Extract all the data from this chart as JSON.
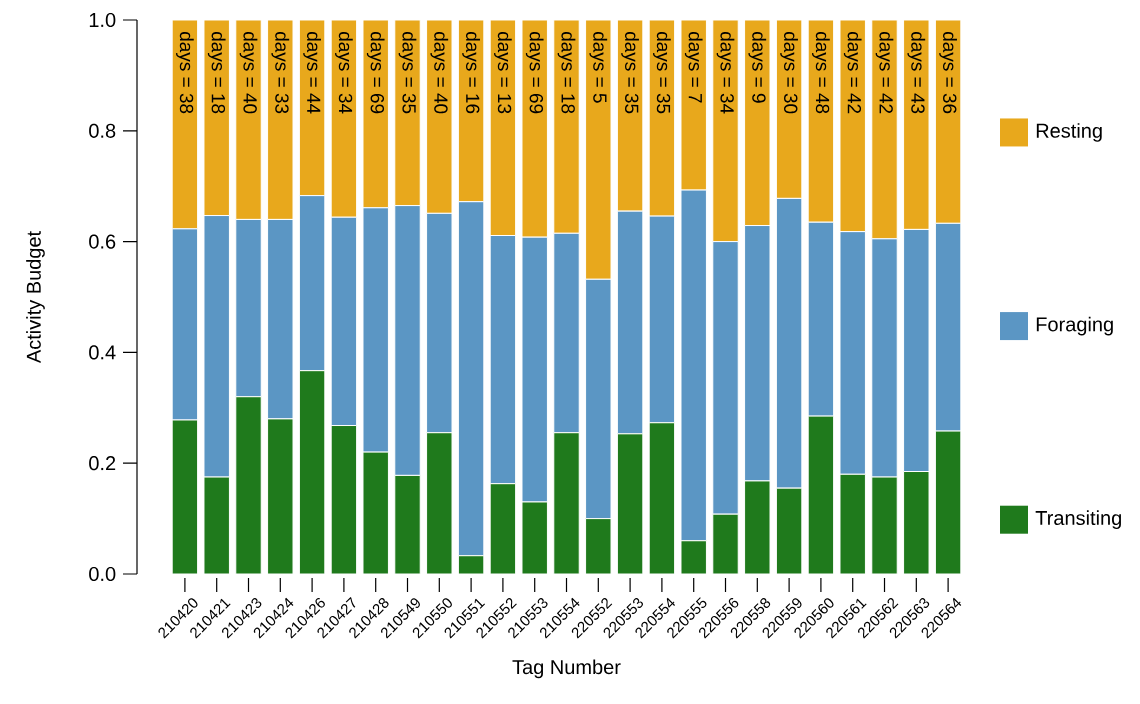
{
  "chart_data": {
    "type": "bar",
    "stacked": true,
    "xlabel": "Tag Number",
    "ylabel": "Activity Budget",
    "categories": [
      "210420",
      "210421",
      "210423",
      "210424",
      "210426",
      "210427",
      "210428",
      "210549",
      "210550",
      "210551",
      "210552",
      "210553",
      "210554",
      "220552",
      "220553",
      "220554",
      "220555",
      "220556",
      "220558",
      "220559",
      "220560",
      "220561",
      "220562",
      "220563",
      "220564"
    ],
    "series": [
      {
        "name": "Transiting",
        "color": "#1f7a1c",
        "values": [
          0.278,
          0.175,
          0.32,
          0.28,
          0.367,
          0.268,
          0.22,
          0.178,
          0.255,
          0.033,
          0.163,
          0.13,
          0.255,
          0.1,
          0.253,
          0.273,
          0.06,
          0.108,
          0.168,
          0.155,
          0.285,
          0.18,
          0.175,
          0.185,
          0.258
        ]
      },
      {
        "name": "Foraging",
        "color": "#5b96c4",
        "values": [
          0.345,
          0.472,
          0.32,
          0.36,
          0.316,
          0.376,
          0.441,
          0.487,
          0.396,
          0.639,
          0.448,
          0.478,
          0.36,
          0.432,
          0.402,
          0.373,
          0.633,
          0.492,
          0.461,
          0.523,
          0.35,
          0.438,
          0.43,
          0.437,
          0.375
        ]
      },
      {
        "name": "Resting",
        "color": "#e8a81c",
        "values": [
          0.377,
          0.353,
          0.36,
          0.36,
          0.317,
          0.356,
          0.339,
          0.335,
          0.349,
          0.328,
          0.389,
          0.392,
          0.385,
          0.468,
          0.345,
          0.354,
          0.307,
          0.4,
          0.371,
          0.322,
          0.365,
          0.382,
          0.395,
          0.378,
          0.367
        ]
      }
    ],
    "ylim": [
      0,
      1
    ],
    "yticks": [
      {
        "value": 0,
        "label": "0.0"
      },
      0.2,
      0.4,
      0.6,
      0.8,
      {
        "value": 1,
        "label": "1.0"
      }
    ],
    "legend": "right",
    "annotations": [
      "days = 38",
      "days = 18",
      "days = 40",
      "days = 33",
      "days = 44",
      "days = 34",
      "days = 69",
      "days = 35",
      "days = 40",
      "days = 16",
      "days = 13",
      "days = 69",
      "days = 18",
      "days = 5",
      "days = 35",
      "days = 35",
      "days = 7",
      "days = 34",
      "days = 9",
      "days = 30",
      "days = 48",
      "days = 42",
      "days = 42",
      "days = 43",
      "days = 36"
    ]
  }
}
